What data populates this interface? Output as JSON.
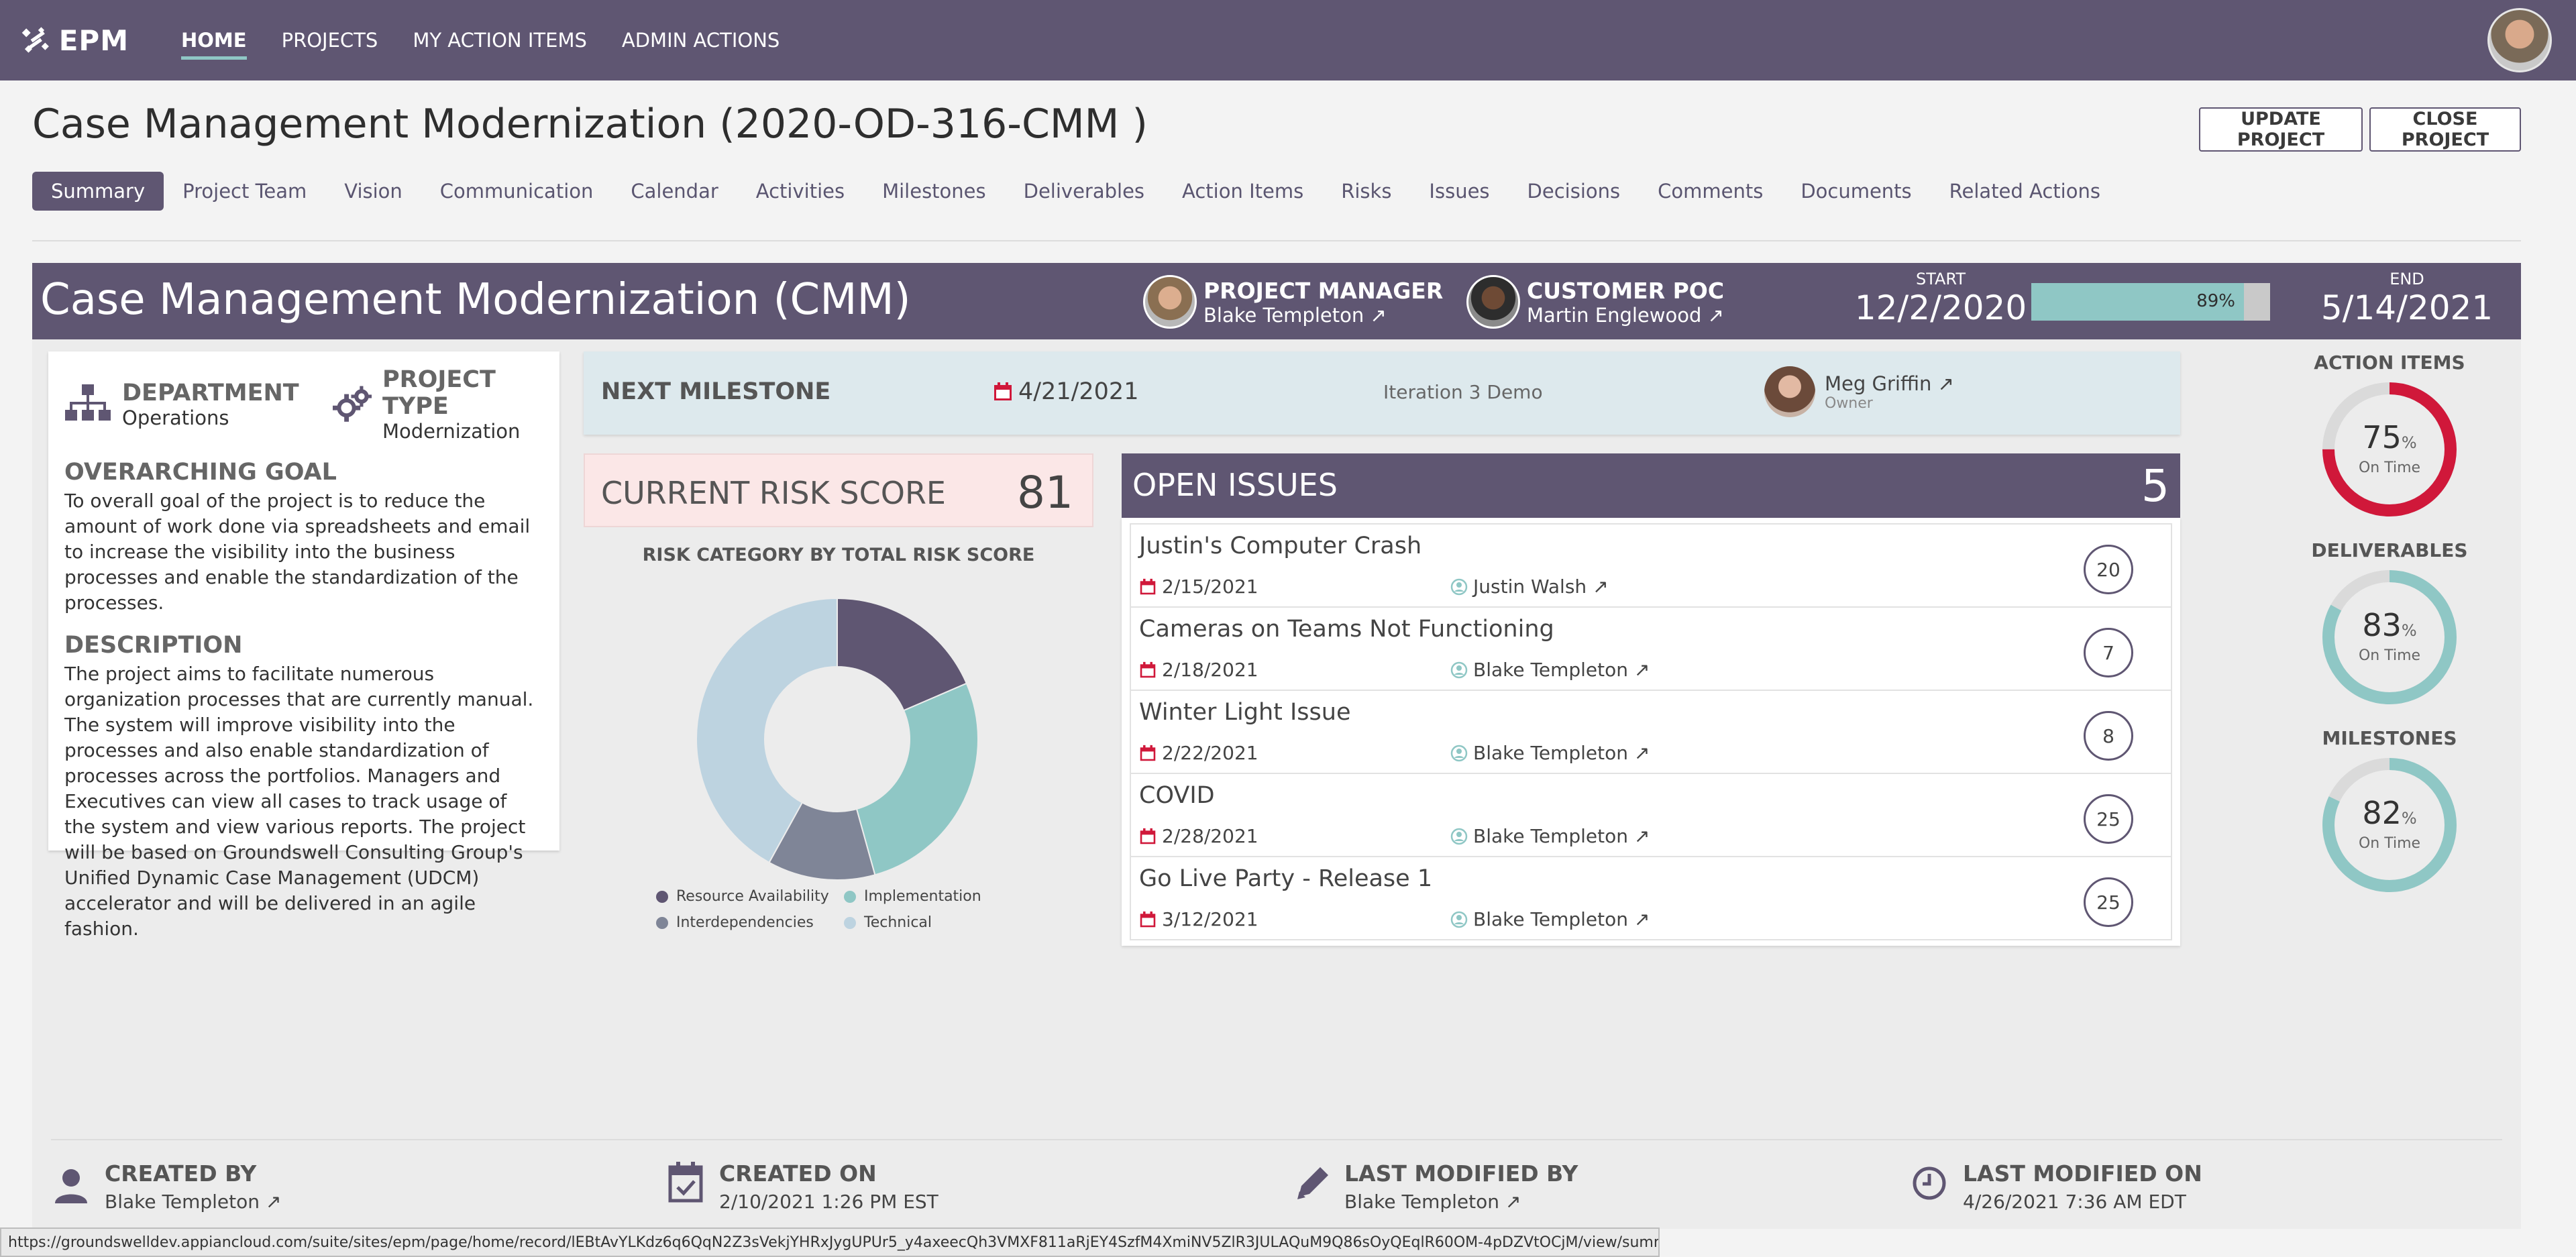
{
  "app": {
    "logo_text": "EPM"
  },
  "nav": {
    "items": [
      {
        "label": "HOME",
        "active": true
      },
      {
        "label": "PROJECTS",
        "active": false
      },
      {
        "label": "MY ACTION ITEMS",
        "active": false
      },
      {
        "label": "ADMIN ACTIONS",
        "active": false
      }
    ]
  },
  "page": {
    "title": "Case Management Modernization (2020-OD-316-CMM )",
    "update_button": "UPDATE PROJECT",
    "close_button": "CLOSE PROJECT"
  },
  "tabs": [
    {
      "label": "Summary",
      "active": true
    },
    {
      "label": "Project Team"
    },
    {
      "label": "Vision"
    },
    {
      "label": "Communication"
    },
    {
      "label": "Calendar"
    },
    {
      "label": "Activities"
    },
    {
      "label": "Milestones"
    },
    {
      "label": "Deliverables"
    },
    {
      "label": "Action Items"
    },
    {
      "label": "Risks"
    },
    {
      "label": "Issues"
    },
    {
      "label": "Decisions"
    },
    {
      "label": "Comments"
    },
    {
      "label": "Documents"
    },
    {
      "label": "Related Actions"
    }
  ],
  "header": {
    "project_name": "Case Management Modernization (CMM)",
    "manager_role": "PROJECT MANAGER",
    "manager_name": "Blake Templeton ↗",
    "poc_role": "CUSTOMER POC",
    "poc_name": "Martin Englewood ↗",
    "start_label": "START",
    "start_date": "12/2/2020",
    "progress_label": "89%",
    "progress_fraction": 0.89,
    "end_label": "END",
    "end_date": "5/14/2021"
  },
  "info": {
    "department_label": "DEPARTMENT",
    "department_value": "Operations",
    "type_label": "PROJECT TYPE",
    "type_value": "Modernization",
    "goal_title": "OVERARCHING GOAL",
    "goal_text": "To overall goal of the project is to reduce the amount of work done via spreadsheets and email to increase the visibility into the business processes and enable the standardization of the processes.",
    "description_title": "DESCRIPTION",
    "description_text": "The project aims to facilitate numerous organization processes that are currently manual. The system will improve visibility into the processes and also enable standardization of processes across the portfolios. Managers and Executives can view all cases to track usage of the system and view various reports. The project will be based on Groundswell Consulting Group's Unified Dynamic Case Management (UDCM) accelerator and will be delivered in an agile fashion."
  },
  "milestone": {
    "title": "NEXT MILESTONE",
    "date": "4/21/2021",
    "name": "Iteration 3 Demo",
    "owner_name": "Meg Griffin ↗",
    "owner_role": "Owner"
  },
  "risk": {
    "label": "CURRENT RISK SCORE",
    "value": "81"
  },
  "chart_data": {
    "type": "pie",
    "title": "RISK CATEGORY BY TOTAL RISK SCORE",
    "categories": [
      "Resource Availability",
      "Implementation",
      "Interdependencies",
      "Technical"
    ],
    "values": [
      15,
      22,
      10,
      34
    ],
    "colors": [
      "#5f5672",
      "#8fc7c5",
      "#7f8597",
      "#bdd3e0"
    ],
    "legend": "bottom"
  },
  "issues": {
    "title": "OPEN ISSUES",
    "count": "5",
    "items": [
      {
        "name": "Justin's Computer Crash",
        "date": "2/15/2021",
        "person": "Justin Walsh ↗",
        "score": "20"
      },
      {
        "name": "Cameras on Teams Not Functioning",
        "date": "2/18/2021",
        "person": "Blake Templeton ↗",
        "score": "7"
      },
      {
        "name": "Winter Light Issue",
        "date": "2/22/2021",
        "person": "Blake Templeton ↗",
        "score": "8"
      },
      {
        "name": "COVID",
        "date": "2/28/2021",
        "person": "Blake Templeton ↗",
        "score": "25"
      },
      {
        "name": "Go Live Party - Release 1",
        "date": "3/12/2021",
        "person": "Blake Templeton ↗",
        "score": "25"
      }
    ]
  },
  "rings": [
    {
      "label": "ACTION ITEMS",
      "value": "75",
      "fraction": 0.75,
      "unit": "%",
      "sub": "On Time",
      "color": "#d0183a"
    },
    {
      "label": "DELIVERABLES",
      "value": "83",
      "fraction": 0.83,
      "unit": "%",
      "sub": "On Time",
      "color": "#8fc7c5"
    },
    {
      "label": "MILESTONES",
      "value": "82",
      "fraction": 0.82,
      "unit": "%",
      "sub": "On Time",
      "color": "#8fc7c5"
    }
  ],
  "footer": {
    "created_by_label": "CREATED BY",
    "created_by_value": "Blake Templeton ↗",
    "created_on_label": "CREATED ON",
    "created_on_value": "2/10/2021 1:26 PM EST",
    "modified_by_label": "LAST MODIFIED BY",
    "modified_by_value": "Blake Templeton ↗",
    "modified_on_label": "LAST MODIFIED ON",
    "modified_on_value": "4/26/2021 7:36 AM EDT"
  },
  "status_url": "https://groundswelldev.appiancloud.com/suite/sites/epm/page/home/record/lEBtAvYLKdz6q6QqN2Z3sVekjYHRxJygUPUr5_y4axeecQh3VMXF811aRjEY4SzfM4XmiNV5ZlR3JULAQuM9Q86sOyQEqlR60OM-4pDZVtOCjM/view/summary",
  "colors": {
    "primary": "#5f5672",
    "accent": "#8fc7c5",
    "danger": "#d0183a"
  }
}
